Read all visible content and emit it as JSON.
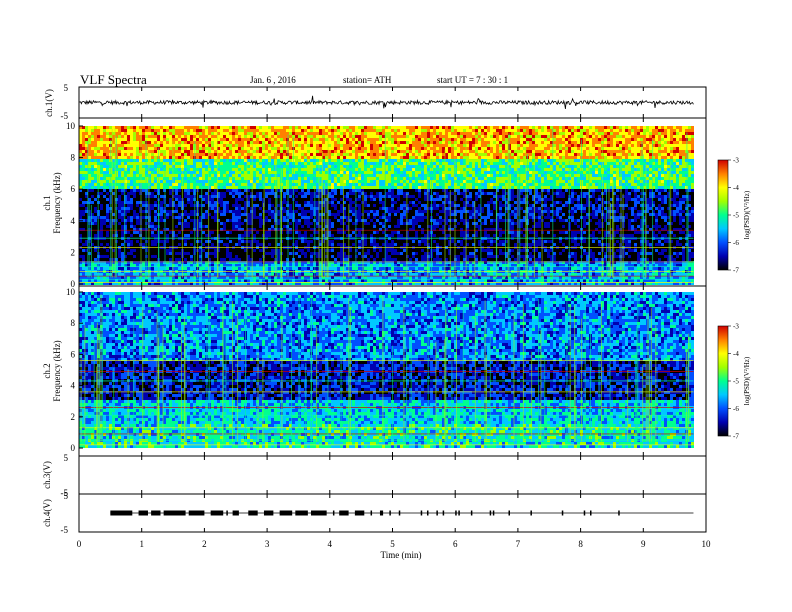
{
  "header": {
    "title": "VLF  Spectra",
    "date": "Jan. 6  , 2016",
    "station": "station= ATH",
    "start": "start  UT  =   7  : 30 : 1"
  },
  "colors": {
    "colormap": [
      "#000000",
      "#0000b0",
      "#0050ff",
      "#00c8ff",
      "#00ff90",
      "#a0ff00",
      "#ffff00",
      "#ff8000",
      "#d00000",
      "#ffffff"
    ],
    "trace": "#000000",
    "axis": "#000000"
  },
  "chart_data": [
    {
      "type": "line",
      "name": "ch1-waveform",
      "ylabel": "ch.1(V)",
      "ylim": [
        -5,
        5
      ],
      "ytick_labels": [
        "5",
        "-5"
      ],
      "xlim": [
        0,
        10
      ],
      "x_span_min": [
        0,
        9.8
      ],
      "mean_level": 0,
      "amplitude": 0.6
    },
    {
      "type": "heatmap",
      "name": "ch1-spectrogram",
      "ylabel": "Frequency  (kHz)",
      "channel_label": "ch.1",
      "ylim": [
        0,
        10
      ],
      "y_ticks": [
        0,
        2,
        4,
        6,
        8,
        10
      ],
      "xlim": [
        0,
        10
      ],
      "x_span_min": [
        0,
        9.8
      ],
      "colorbar": {
        "label": "log(PSD)(V²/Hz)",
        "ticks": [
          -3,
          -4,
          -5,
          -6,
          -7
        ],
        "range": [
          -7,
          -3
        ]
      },
      "profile": [
        {
          "from_khz": 0.0,
          "to_khz": 1.5,
          "log_psd": -5.6
        },
        {
          "from_khz": 1.5,
          "to_khz": 4.0,
          "log_psd": -6.6
        },
        {
          "from_khz": 4.0,
          "to_khz": 6.0,
          "log_psd": -6.4
        },
        {
          "from_khz": 6.0,
          "to_khz": 8.0,
          "log_psd": -4.9
        },
        {
          "from_khz": 8.0,
          "to_khz": 10.0,
          "log_psd": -3.9
        }
      ],
      "tonal_lines_khz": [
        0.1,
        0.3,
        0.5,
        0.8,
        1.1,
        1.4,
        2.3,
        2.9,
        3.4
      ],
      "sferic_density": "high"
    },
    {
      "type": "heatmap",
      "name": "ch2-spectrogram",
      "ylabel": "Frequency  (kHz)",
      "channel_label": "ch.2",
      "ylim": [
        0,
        10
      ],
      "y_ticks": [
        0,
        2,
        4,
        6,
        8,
        10
      ],
      "xlim": [
        0,
        10
      ],
      "x_span_min": [
        0,
        9.8
      ],
      "colorbar": {
        "label": "log(PSD)(V²/Hz)",
        "ticks": [
          -3,
          -4,
          -5,
          -6,
          -7
        ],
        "range": [
          -7,
          -3
        ]
      },
      "profile": [
        {
          "from_khz": 0.0,
          "to_khz": 1.5,
          "log_psd": -5.2
        },
        {
          "from_khz": 1.5,
          "to_khz": 3.0,
          "log_psd": -5.4
        },
        {
          "from_khz": 3.0,
          "to_khz": 5.5,
          "log_psd": -6.3
        },
        {
          "from_khz": 5.5,
          "to_khz": 10.0,
          "log_psd": -5.7
        }
      ],
      "tonal_lines_khz": [
        0.2,
        0.5,
        0.9,
        1.3,
        2.1,
        2.6,
        3.6,
        4.3,
        4.9,
        5.6
      ],
      "sferic_density": "high"
    },
    {
      "type": "line",
      "name": "ch3-waveform",
      "ylabel": "ch.3(V)",
      "ylim": [
        -5,
        5
      ],
      "ytick_labels": [
        "5",
        "-5"
      ],
      "xlim": [
        0,
        10
      ],
      "mean_level": 0
    },
    {
      "type": "scatter",
      "name": "ch4-events",
      "ylabel": "ch.4(V)",
      "ylim": [
        -5,
        5
      ],
      "ytick_labels": [
        "5",
        "-5"
      ],
      "xlim": [
        0,
        10
      ],
      "baseline": [
        0.5,
        9.8
      ],
      "event_level": 0,
      "event_clusters_min": [
        [
          0.5,
          0.85
        ],
        [
          0.95,
          1.1
        ],
        [
          1.15,
          1.3
        ],
        [
          1.35,
          1.7
        ],
        [
          1.75,
          2.0
        ],
        [
          2.1,
          2.3
        ],
        [
          2.45,
          2.55
        ],
        [
          2.7,
          2.85
        ],
        [
          2.95,
          3.1
        ],
        [
          3.2,
          3.4
        ],
        [
          3.45,
          3.65
        ],
        [
          3.7,
          3.95
        ],
        [
          4.15,
          4.3
        ],
        [
          4.4,
          4.55
        ],
        [
          4.8,
          4.85
        ]
      ],
      "isolated_events_min": [
        2.35,
        4.05,
        4.65,
        4.95,
        5.1,
        5.45,
        5.55,
        5.7,
        5.8,
        6.0,
        6.05,
        6.25,
        6.55,
        6.6,
        6.85,
        7.2,
        7.7,
        8.05,
        8.15,
        8.6
      ]
    }
  ],
  "x_axis": {
    "label": "Time  (min)",
    "ticks": [
      0,
      1,
      2,
      3,
      4,
      5,
      6,
      7,
      8,
      9,
      10
    ],
    "xlim": [
      0,
      10
    ]
  }
}
